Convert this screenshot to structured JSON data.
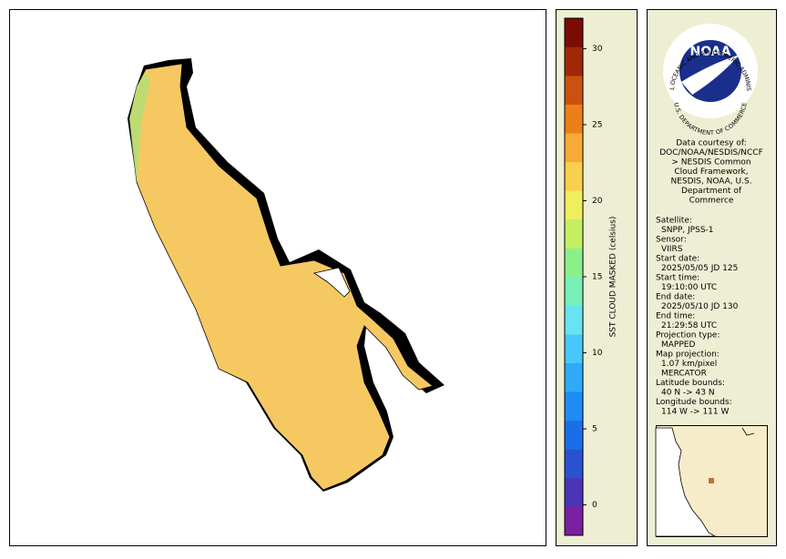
{
  "colorbar": {
    "label": "SST CLOUD MASKED (celsius)",
    "range": [
      -2,
      32
    ],
    "ticks": [
      0,
      5,
      10,
      15,
      20,
      25,
      30
    ],
    "colors": [
      "#7a1fa0",
      "#4a36b4",
      "#2a52d0",
      "#1c6ee8",
      "#1e8cf4",
      "#2eaaf8",
      "#48c8fa",
      "#66e4f0",
      "#78f0b8",
      "#8cf08a",
      "#c4f062",
      "#f0ee5c",
      "#f8d04e",
      "#f8aa36",
      "#ec8018",
      "#cc5010",
      "#a02808",
      "#7a0c04"
    ]
  },
  "logo": {
    "name": "NOAA",
    "ring_top": "NATIONAL OCEANIC AND ATMOSPHERIC ADMINISTRATION",
    "ring_bottom": "U.S. DEPARTMENT OF COMMERCE"
  },
  "credit": [
    "Data courtesy of:",
    "DOC/NOAA/NESDIS/NCCF",
    "> NESDIS Common",
    "Cloud Framework,",
    "NESDIS, NOAA, U.S.",
    "Department of",
    "Commerce"
  ],
  "metadata": [
    {
      "label": "Satellite:",
      "value": [
        "SNPP, JPSS-1"
      ]
    },
    {
      "label": "Sensor:",
      "value": [
        "VIIRS"
      ]
    },
    {
      "label": "Start date:",
      "value": [
        "2025/05/05 JD 125"
      ]
    },
    {
      "label": "Start time:",
      "value": [
        "19:10:00 UTC"
      ]
    },
    {
      "label": "End date:",
      "value": [
        "2025/05/10 JD 130"
      ]
    },
    {
      "label": "End time:",
      "value": [
        "21:29:58 UTC"
      ]
    },
    {
      "label": "Projection type:",
      "value": [
        "MAPPED"
      ]
    },
    {
      "label": "Map projection:",
      "value": [
        "1.07 km/pixel",
        "MERCATOR"
      ]
    },
    {
      "label": "Latitude bounds:",
      "value": [
        "40 N -> 43 N"
      ]
    },
    {
      "label": "Longitude bounds:",
      "value": [
        "114 W -> 111 W"
      ]
    }
  ]
}
